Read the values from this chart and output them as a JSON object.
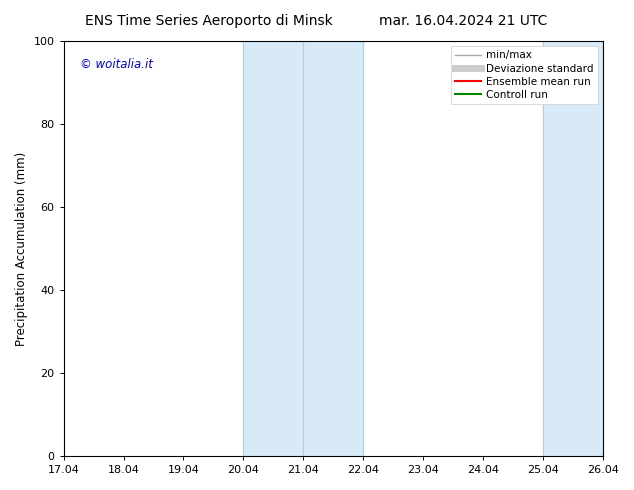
{
  "title_left": "ENS Time Series Aeroporto di Minsk",
  "title_right": "mar. 16.04.2024 21 UTC",
  "ylabel": "Precipitation Accumulation (mm)",
  "watermark": "© woitalia.it",
  "watermark_color": "#0000cc",
  "xlim_left": 17.04,
  "xlim_right": 26.04,
  "ylim_bottom": 0,
  "ylim_top": 100,
  "xticks": [
    17.04,
    18.04,
    19.04,
    20.04,
    21.04,
    22.04,
    23.04,
    24.04,
    25.04,
    26.04
  ],
  "xtick_labels": [
    "17.04",
    "18.04",
    "19.04",
    "20.04",
    "21.04",
    "22.04",
    "23.04",
    "24.04",
    "25.04",
    "26.04"
  ],
  "yticks": [
    0,
    20,
    40,
    60,
    80,
    100
  ],
  "shaded_bands": [
    {
      "x_start": 20.04,
      "x_end": 22.04,
      "color": "#d8eaf8"
    },
    {
      "x_start": 25.04,
      "x_end": 26.04,
      "color": "#d8eaf8"
    }
  ],
  "band_edge_lines": [
    {
      "x": 20.04
    },
    {
      "x": 21.04
    },
    {
      "x": 22.04
    },
    {
      "x": 25.04
    },
    {
      "x": 26.04
    }
  ],
  "band_edge_color": "#b0cfe0",
  "band_edge_lw": 0.8,
  "legend_entries": [
    {
      "label": "min/max",
      "color": "#aaaaaa",
      "lw": 1.0
    },
    {
      "label": "Deviazione standard",
      "color": "#cccccc",
      "lw": 5.0
    },
    {
      "label": "Ensemble mean run",
      "color": "#ff0000",
      "lw": 1.5
    },
    {
      "label": "Controll run",
      "color": "#008800",
      "lw": 1.5
    }
  ],
  "background_color": "#ffffff",
  "title_fontsize": 10,
  "legend_fontsize": 7.5,
  "tick_fontsize": 8,
  "ylabel_fontsize": 8.5,
  "watermark_fontsize": 8.5
}
